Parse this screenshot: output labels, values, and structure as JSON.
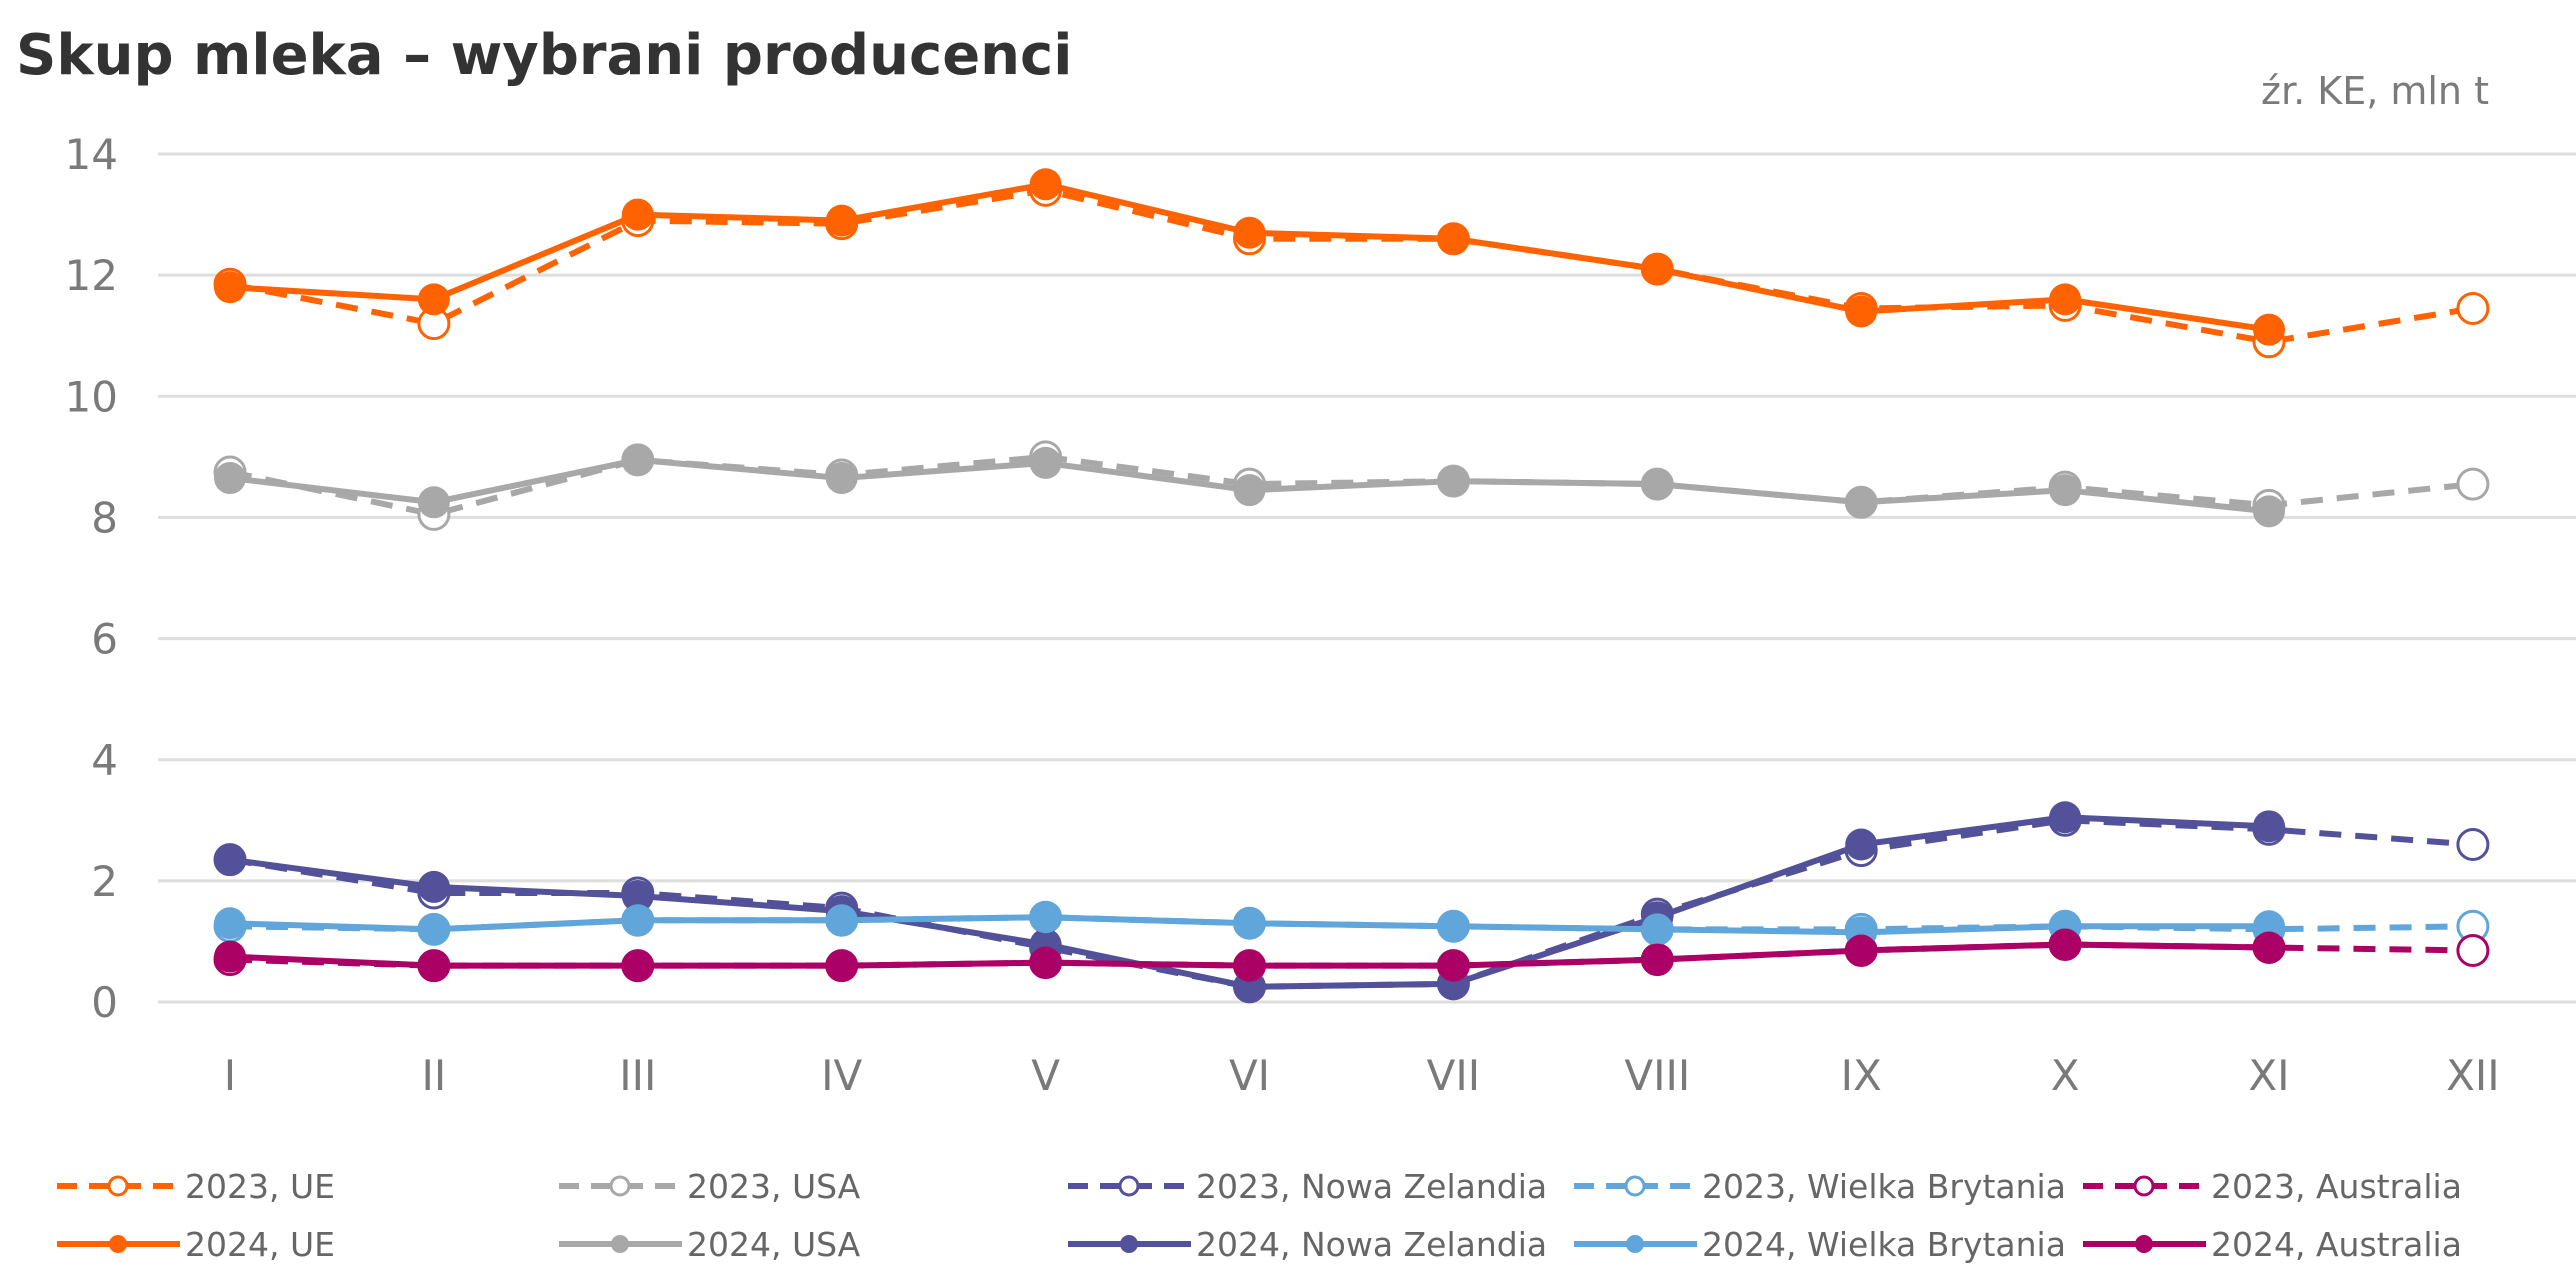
{
  "chart_data": {
    "type": "line",
    "title": "Skup mleka – wybrani producenci",
    "source_note": "źr. KE, mln t",
    "xlabel": "",
    "ylabel": "",
    "categories": [
      "I",
      "II",
      "III",
      "IV",
      "V",
      "VI",
      "VII",
      "VIII",
      "IX",
      "X",
      "XI",
      "XII"
    ],
    "ylim": [
      0,
      14
    ],
    "yticks": [
      0,
      2,
      4,
      6,
      8,
      10,
      12,
      14
    ],
    "grid": true,
    "legend_position": "bottom",
    "series": [
      {
        "name": "2023, UE",
        "color": "#FF6200",
        "style": "dashed",
        "marker": "open",
        "values": [
          11.85,
          11.2,
          12.9,
          12.85,
          13.4,
          12.6,
          12.6,
          12.1,
          11.45,
          11.5,
          10.9,
          11.45
        ]
      },
      {
        "name": "2023, USA",
        "color": "#A8A8A8",
        "style": "dashed",
        "marker": "open",
        "values": [
          8.75,
          8.05,
          8.95,
          8.7,
          9.0,
          8.55,
          8.6,
          8.55,
          8.25,
          8.5,
          8.2,
          8.55
        ]
      },
      {
        "name": "2023, Nowa Zelandia",
        "color": "#525199",
        "style": "dashed",
        "marker": "open",
        "values": [
          2.35,
          1.8,
          1.8,
          1.55,
          0.9,
          0.25,
          0.3,
          1.45,
          2.5,
          3.0,
          2.85,
          2.6
        ]
      },
      {
        "name": "2023, Wielka Brytania",
        "color": "#60A6DA",
        "style": "dashed",
        "marker": "open",
        "values": [
          1.25,
          1.2,
          1.35,
          1.35,
          1.4,
          1.3,
          1.25,
          1.2,
          1.2,
          1.25,
          1.2,
          1.25
        ]
      },
      {
        "name": "2023, Australia",
        "color": "#AB0066",
        "style": "dashed",
        "marker": "open",
        "values": [
          0.7,
          0.6,
          0.6,
          0.6,
          0.65,
          0.6,
          0.6,
          0.7,
          0.85,
          0.95,
          0.9,
          0.85
        ]
      },
      {
        "name": "2024, UE",
        "color": "#FF6200",
        "style": "solid",
        "marker": "filled",
        "values": [
          11.8,
          11.6,
          13.0,
          12.9,
          13.5,
          12.7,
          12.6,
          12.1,
          11.4,
          11.6,
          11.1,
          null
        ]
      },
      {
        "name": "2024, USA",
        "color": "#A8A8A8",
        "style": "solid",
        "marker": "filled",
        "values": [
          8.65,
          8.25,
          8.95,
          8.65,
          8.9,
          8.45,
          8.6,
          8.55,
          8.25,
          8.45,
          8.1,
          null
        ]
      },
      {
        "name": "2024, Nowa Zelandia",
        "color": "#525199",
        "style": "solid",
        "marker": "filled",
        "values": [
          2.35,
          1.9,
          1.75,
          1.5,
          0.95,
          0.25,
          0.3,
          1.4,
          2.6,
          3.05,
          2.9,
          null
        ]
      },
      {
        "name": "2024, Wielka Brytania",
        "color": "#60A6DA",
        "style": "solid",
        "marker": "filled",
        "values": [
          1.3,
          1.2,
          1.35,
          1.35,
          1.4,
          1.3,
          1.25,
          1.2,
          1.15,
          1.25,
          1.25,
          null
        ]
      },
      {
        "name": "2024, Australia",
        "color": "#AB0066",
        "style": "solid",
        "marker": "filled",
        "values": [
          0.75,
          0.6,
          0.6,
          0.6,
          0.65,
          0.6,
          0.6,
          0.7,
          0.85,
          0.95,
          0.9,
          null
        ]
      }
    ]
  }
}
